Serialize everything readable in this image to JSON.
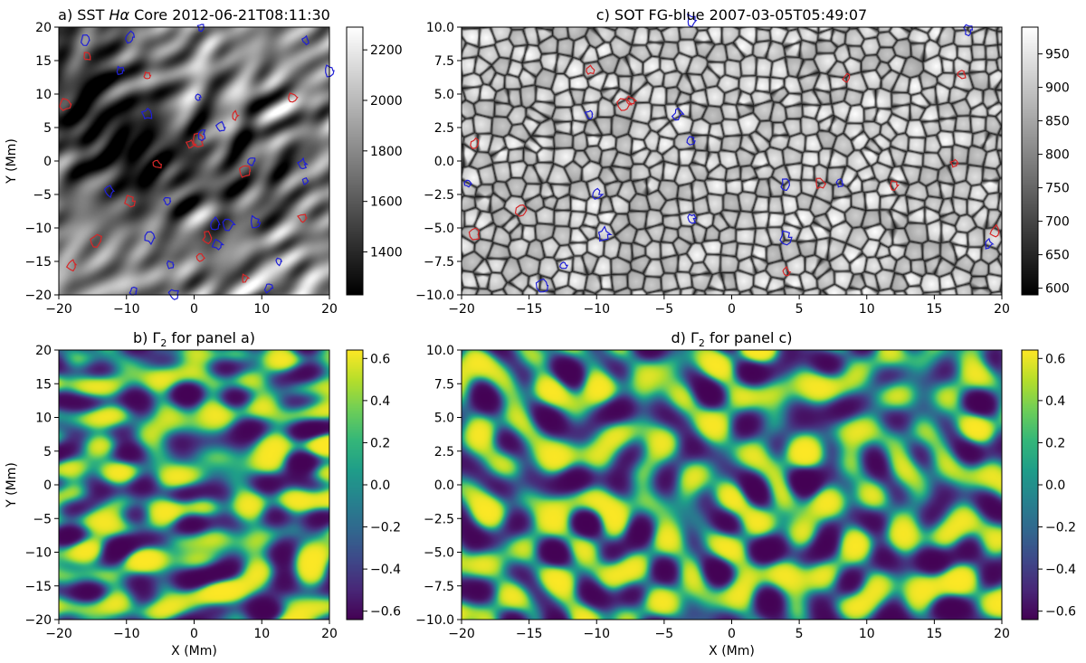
{
  "figure": {
    "panels": [
      {
        "id": "a",
        "title_prefix": "a) SST ",
        "title_italic": "Hα",
        "title_suffix": " Core 2012-06-21T08:11:30",
        "kind": "halpha"
      },
      {
        "id": "b",
        "title_prefix": "b) Γ",
        "title_sub": "2",
        "title_suffix": " for panel a)",
        "kind": "gamma"
      },
      {
        "id": "c",
        "title_prefix": "c) SOT FG-blue 2007-03-05T05:49:07",
        "kind": "granulation"
      },
      {
        "id": "d",
        "title_prefix": "d) Γ",
        "title_sub": "2",
        "title_suffix": " for panel c)",
        "kind": "gamma"
      }
    ],
    "xlabel": "X (Mm)",
    "ylabel": "Y (Mm)",
    "colors": {
      "contour_positive": "#d62728",
      "contour_negative": "#1f1fd6",
      "viridis_low": "#440154",
      "viridis_mid": "#21918c",
      "viridis_high": "#fde725"
    }
  },
  "chart_data": [
    {
      "type": "heatmap",
      "panel": "a",
      "title": "a) SST Hα Core 2012-06-21T08:11:30",
      "xlabel": "",
      "ylabel": "Y (Mm)",
      "xlim": [
        -20,
        20
      ],
      "ylim": [
        -20,
        20
      ],
      "xticks": [
        -20,
        -10,
        0,
        10,
        20
      ],
      "yticks": [
        -20,
        -15,
        -10,
        -5,
        0,
        5,
        10,
        15,
        20
      ],
      "colormap": "gray",
      "colorbar": {
        "range": [
          1230,
          2290
        ],
        "ticks": [
          1400,
          1600,
          1800,
          2000,
          2200
        ]
      },
      "contours": {
        "red": [
          [
            -15.9,
            15.6
          ],
          [
            -7,
            12.8
          ],
          [
            14.5,
            9.5
          ],
          [
            6,
            6.8
          ],
          [
            -19,
            8.5
          ],
          [
            -0.5,
            2.5
          ],
          [
            0.5,
            3
          ],
          [
            -5.5,
            -0.5
          ],
          [
            7.5,
            -1.5
          ],
          [
            -9.5,
            -6
          ],
          [
            16,
            -8.5
          ],
          [
            -14.5,
            -12
          ],
          [
            1,
            -14.5
          ],
          [
            7.5,
            -17.5
          ],
          [
            -18,
            -15.5
          ],
          [
            2,
            -11.5
          ]
        ],
        "blue": [
          [
            -16,
            18
          ],
          [
            -9.5,
            18.5
          ],
          [
            1,
            20
          ],
          [
            16.5,
            18
          ],
          [
            20,
            13.5
          ],
          [
            -11,
            13.5
          ],
          [
            0.5,
            9.5
          ],
          [
            -7,
            7
          ],
          [
            4,
            5
          ],
          [
            1,
            4
          ],
          [
            8.5,
            0
          ],
          [
            16,
            -0.5
          ],
          [
            16.5,
            -3
          ],
          [
            -12.5,
            -4.5
          ],
          [
            -4,
            -6
          ],
          [
            3,
            -9.5
          ],
          [
            5,
            -9.5
          ],
          [
            9,
            -9.2
          ],
          [
            -6.5,
            -11.5
          ],
          [
            3.5,
            -12.5
          ],
          [
            -3.5,
            -15.5
          ],
          [
            12.5,
            -15
          ],
          [
            11,
            -19
          ],
          [
            -9,
            -19.5
          ],
          [
            -3,
            -20
          ]
        ]
      }
    },
    {
      "type": "heatmap",
      "panel": "b",
      "title": "b) Γ2 for panel a)",
      "xlabel": "X (Mm)",
      "ylabel": "Y (Mm)",
      "xlim": [
        -20,
        20
      ],
      "ylim": [
        -20,
        20
      ],
      "xticks": [
        -20,
        -10,
        0,
        10,
        20
      ],
      "yticks": [
        -20,
        -15,
        -10,
        -5,
        0,
        5,
        10,
        15,
        20
      ],
      "colormap": "viridis",
      "colorbar": {
        "range": [
          -0.64,
          0.64
        ],
        "ticks": [
          -0.6,
          -0.4,
          -0.2,
          0.0,
          0.2,
          0.4,
          0.6
        ]
      }
    },
    {
      "type": "heatmap",
      "panel": "c",
      "title": "c) SOT FG-blue 2007-03-05T05:49:07",
      "xlabel": "",
      "ylabel": "",
      "xlim": [
        -20,
        20
      ],
      "ylim": [
        -10,
        10
      ],
      "xticks": [
        -20,
        -15,
        -10,
        -5,
        0,
        5,
        10,
        15,
        20
      ],
      "yticks": [
        -10.0,
        -7.5,
        -5.0,
        -2.5,
        0.0,
        2.5,
        5.0,
        7.5,
        10.0
      ],
      "colormap": "gray",
      "colorbar": {
        "range": [
          590,
          990
        ],
        "ticks": [
          600,
          650,
          700,
          750,
          800,
          850,
          900,
          950
        ]
      },
      "contours": {
        "red": [
          [
            -10.5,
            6.8
          ],
          [
            -8,
            4.2
          ],
          [
            -7.5,
            4.5
          ],
          [
            -19,
            1.3
          ],
          [
            -15.5,
            -3.7
          ],
          [
            -19,
            -5.5
          ],
          [
            8.5,
            6.2
          ],
          [
            17,
            6.5
          ],
          [
            6.5,
            -1.7
          ],
          [
            12,
            -1.8
          ],
          [
            16.5,
            -0.2
          ],
          [
            4,
            -8.3
          ],
          [
            19.5,
            -5.3
          ]
        ],
        "blue": [
          [
            -3,
            10.5
          ],
          [
            -10.5,
            3.5
          ],
          [
            -4,
            3.5
          ],
          [
            -3,
            1.5
          ],
          [
            -19.5,
            -1.7
          ],
          [
            -10,
            -2.5
          ],
          [
            -9.5,
            -5.5
          ],
          [
            -3,
            -4.3
          ],
          [
            4,
            -1.8
          ],
          [
            8,
            -1.7
          ],
          [
            4,
            -5.7
          ],
          [
            19,
            -6.2
          ],
          [
            17.5,
            9.8
          ],
          [
            -14,
            -9.3
          ],
          [
            -12.5,
            -7.8
          ]
        ]
      }
    },
    {
      "type": "heatmap",
      "panel": "d",
      "title": "d) Γ2 for panel c)",
      "xlabel": "X (Mm)",
      "ylabel": "",
      "xlim": [
        -20,
        20
      ],
      "ylim": [
        -10,
        10
      ],
      "xticks": [
        -20,
        -15,
        -10,
        -5,
        0,
        5,
        10,
        15,
        20
      ],
      "yticks": [
        -10.0,
        -7.5,
        -5.0,
        -2.5,
        0.0,
        2.5,
        5.0,
        7.5,
        10.0
      ],
      "colormap": "viridis",
      "colorbar": {
        "range": [
          -0.64,
          0.64
        ],
        "ticks": [
          -0.6,
          -0.4,
          -0.2,
          0.0,
          0.2,
          0.4,
          0.6
        ]
      }
    }
  ]
}
